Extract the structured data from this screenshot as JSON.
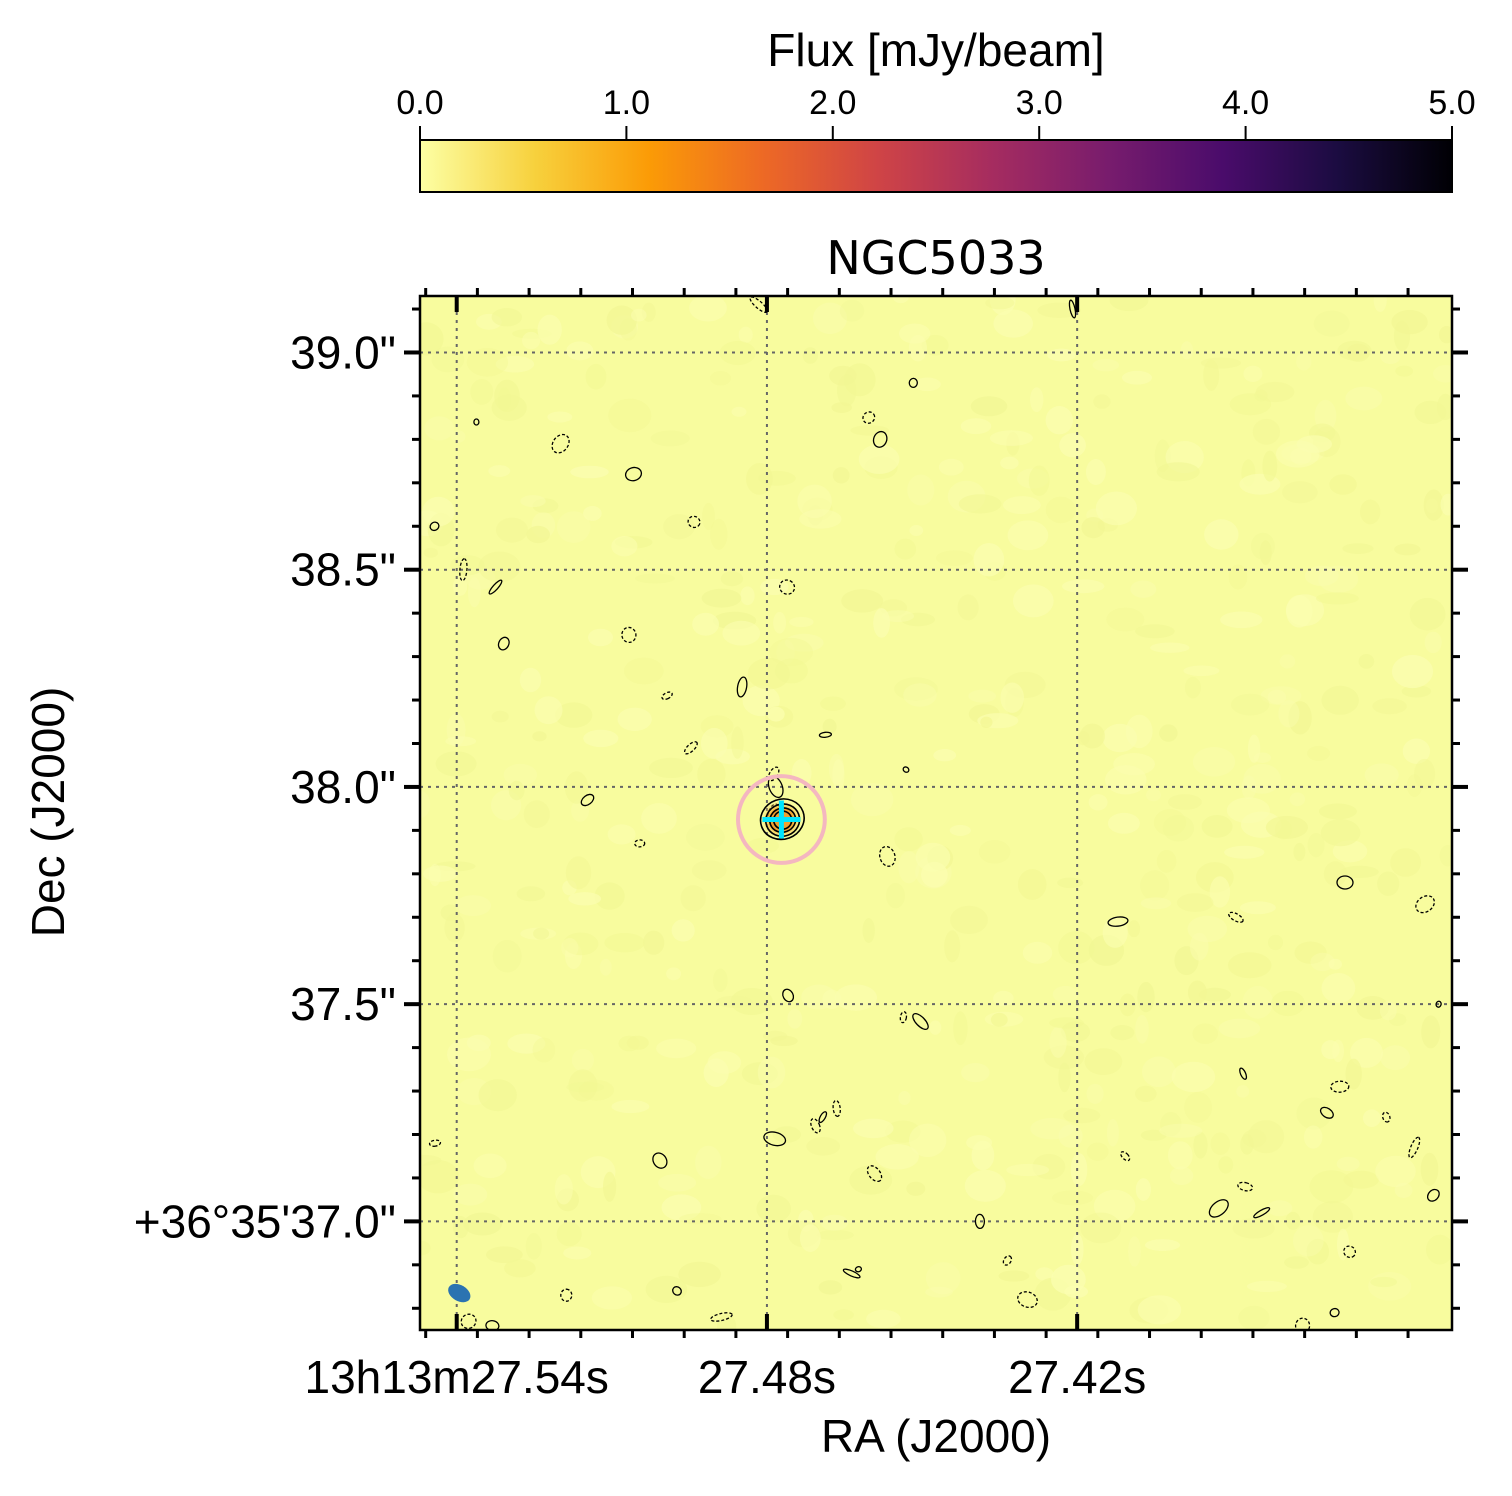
{
  "chart_data": {
    "type": "heatmap",
    "title": "NGC5033",
    "xlabel": "RA (J2000)",
    "ylabel": "Dec (J2000)",
    "x_ticks": [
      {
        "value": 27.54,
        "label": "13h13m27.54s"
      },
      {
        "value": 27.48,
        "label": "27.48s"
      },
      {
        "value": 27.42,
        "label": "27.42s"
      }
    ],
    "y_ticks": [
      {
        "value": 39.0,
        "label": "39.0\""
      },
      {
        "value": 38.5,
        "label": "38.5\""
      },
      {
        "value": 38.0,
        "label": "38.0\""
      },
      {
        "value": 37.5,
        "label": "37.5\""
      },
      {
        "value": 37.0,
        "label": "+36°35'37.0\""
      }
    ],
    "ra_range_s": [
      27.5471,
      27.3475
    ],
    "dec_range_arcsec": [
      36.75,
      39.13
    ],
    "grid": true,
    "colorbar": {
      "label": "Flux [mJy/beam]",
      "range": [
        0.0,
        5.0
      ],
      "ticks": [
        "0.0",
        "1.0",
        "2.0",
        "3.0",
        "4.0",
        "5.0"
      ],
      "colormap": "inferno_r",
      "colors": [
        "#fcffa4",
        "#f7d13d",
        "#fb9b06",
        "#ed6925",
        "#cf4446",
        "#a52c60",
        "#781c6d",
        "#4a0c6b",
        "#1b0c41",
        "#000004"
      ]
    },
    "background_color": "#f8fc9e",
    "source": {
      "ra": 27.4772,
      "dec": 37.925,
      "peak_mJy_per_beam": 0.95,
      "fill_color": "#f0a030"
    },
    "marker_cross": {
      "ra": 27.4772,
      "dec": 37.925,
      "color": "#00e5ff"
    },
    "marker_circle": {
      "ra": 27.4772,
      "dec": 37.925,
      "radius_arcsec": 0.1,
      "color": "#f4b7c0"
    },
    "beam": {
      "ra": 27.5395,
      "dec": 36.835,
      "color": "#2b73b1"
    },
    "noise_contours": [
      [
        27.5362,
        38.84
      ],
      [
        27.5199,
        38.79
      ],
      [
        27.5058,
        38.72
      ],
      [
        27.4941,
        38.61
      ],
      [
        27.5443,
        38.6
      ],
      [
        27.5387,
        38.5
      ],
      [
        27.5325,
        38.46
      ],
      [
        27.5067,
        38.35
      ],
      [
        27.5309,
        38.33
      ],
      [
        27.4993,
        38.21
      ],
      [
        27.4848,
        38.23
      ],
      [
        27.4947,
        38.09
      ],
      [
        27.4687,
        38.12
      ],
      [
        27.4787,
        38.03
      ],
      [
        27.4783,
        38.0
      ],
      [
        27.4786,
        37.94
      ],
      [
        27.5147,
        37.97
      ],
      [
        27.5046,
        37.87
      ],
      [
        27.4531,
        38.04
      ],
      [
        27.4567,
        37.84
      ],
      [
        27.4581,
        38.8
      ],
      [
        27.4603,
        38.85
      ],
      [
        27.4517,
        38.93
      ],
      [
        27.4816,
        39.11
      ],
      [
        27.4209,
        39.1
      ],
      [
        27.4761,
        38.46
      ],
      [
        27.4759,
        37.52
      ],
      [
        27.4536,
        37.47
      ],
      [
        27.4503,
        37.46
      ],
      [
        27.4665,
        37.26
      ],
      [
        27.4692,
        37.24
      ],
      [
        27.4706,
        37.22
      ],
      [
        27.4785,
        37.19
      ],
      [
        27.4592,
        37.11
      ],
      [
        27.4388,
        37.0
      ],
      [
        27.4335,
        36.91
      ],
      [
        27.4623,
        36.89
      ],
      [
        27.4296,
        36.82
      ],
      [
        27.5007,
        37.14
      ],
      [
        27.5188,
        36.83
      ],
      [
        27.4974,
        36.84
      ],
      [
        27.4888,
        36.78
      ],
      [
        27.4636,
        36.88
      ],
      [
        27.5377,
        36.77
      ],
      [
        27.5331,
        36.76
      ],
      [
        27.4107,
        37.15
      ],
      [
        27.4121,
        37.69
      ],
      [
        27.3893,
        37.7
      ],
      [
        27.3879,
        37.34
      ],
      [
        27.3875,
        37.08
      ],
      [
        27.3926,
        37.03
      ],
      [
        27.3692,
        37.31
      ],
      [
        27.3717,
        37.25
      ],
      [
        27.3602,
        37.24
      ],
      [
        27.3501,
        37.5
      ],
      [
        27.3527,
        37.73
      ],
      [
        27.3682,
        37.78
      ],
      [
        27.3673,
        36.93
      ],
      [
        27.3702,
        36.79
      ],
      [
        27.3548,
        37.17
      ],
      [
        27.3843,
        37.02
      ],
      [
        27.3764,
        36.76
      ],
      [
        27.3511,
        37.06
      ],
      [
        27.5442,
        37.18
      ]
    ]
  }
}
